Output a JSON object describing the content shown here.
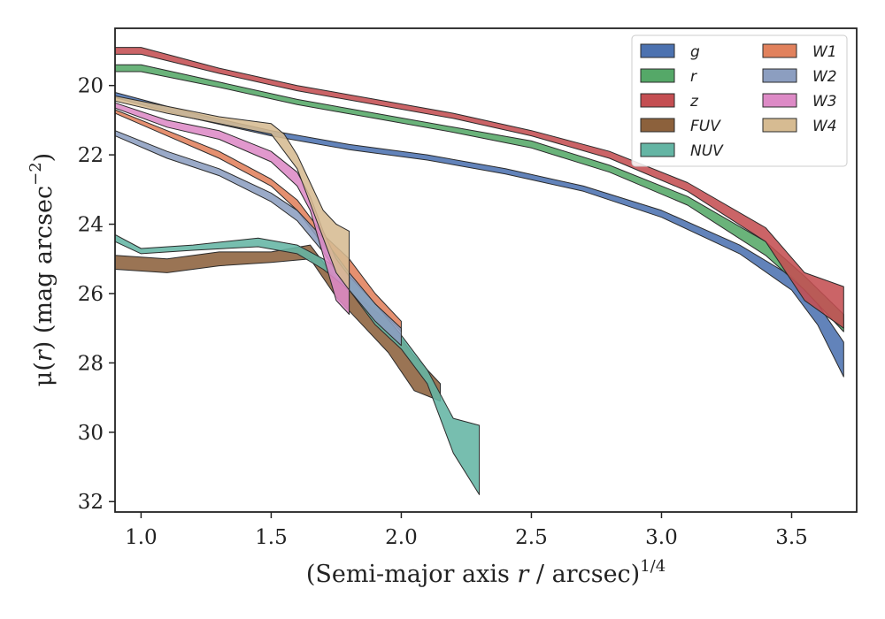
{
  "chart_data": {
    "type": "area",
    "title": "",
    "xlabel": "(Semi-major axis r / arcsec)",
    "xlabel_parts": {
      "prefix": "(Semi-major axis ",
      "var": "r",
      "suffix": " / arcsec)",
      "exponent": "1/4"
    },
    "ylabel": "μ(r) (mag arcsec−2)",
    "ylabel_parts": {
      "prefix": "μ(",
      "var": "r",
      "mid": ") (mag arcsec",
      "exponent": "−2",
      "suffix": ")"
    },
    "xlim": [
      0.9,
      3.75
    ],
    "ylim": [
      32.3,
      18.35
    ],
    "y_inverted": true,
    "x_ticks": [
      1.0,
      1.5,
      2.0,
      2.5,
      3.0,
      3.5
    ],
    "x_tick_labels": [
      "1.0",
      "1.5",
      "2.0",
      "2.5",
      "3.0",
      "3.5"
    ],
    "y_ticks": [
      20,
      22,
      24,
      26,
      28,
      30,
      32
    ],
    "y_tick_labels": [
      "20",
      "22",
      "24",
      "26",
      "28",
      "30",
      "32"
    ],
    "grid": false,
    "legend_position": "top-right",
    "legend_columns": 2,
    "series": [
      {
        "name": "g",
        "color": "#4c72b0",
        "x": [
          0.9,
          1.2,
          1.5,
          1.8,
          2.1,
          2.4,
          2.7,
          3.0,
          3.3,
          3.5,
          3.6,
          3.7
        ],
        "lower": [
          20.2,
          20.8,
          21.3,
          21.7,
          22.0,
          22.4,
          22.9,
          23.6,
          24.6,
          25.5,
          26.3,
          27.4
        ],
        "upper": [
          20.35,
          20.95,
          21.45,
          21.85,
          22.15,
          22.55,
          23.05,
          23.8,
          24.85,
          25.9,
          26.9,
          28.4
        ]
      },
      {
        "name": "r",
        "color": "#55a868",
        "x": [
          0.9,
          1.0,
          1.3,
          1.6,
          1.9,
          2.2,
          2.5,
          2.8,
          3.1,
          3.4,
          3.55,
          3.7
        ],
        "lower": [
          19.4,
          19.4,
          19.9,
          20.4,
          20.8,
          21.2,
          21.6,
          22.3,
          23.2,
          24.5,
          25.5,
          26.6
        ],
        "upper": [
          19.6,
          19.6,
          20.05,
          20.55,
          20.95,
          21.35,
          21.8,
          22.5,
          23.45,
          24.9,
          25.9,
          27.1
        ]
      },
      {
        "name": "z",
        "color": "#c44e52",
        "x": [
          0.9,
          1.0,
          1.3,
          1.6,
          1.9,
          2.2,
          2.5,
          2.8,
          3.1,
          3.4,
          3.55,
          3.7
        ],
        "lower": [
          18.9,
          18.9,
          19.5,
          20.0,
          20.4,
          20.8,
          21.3,
          21.9,
          22.8,
          24.1,
          25.4,
          25.8
        ],
        "upper": [
          19.1,
          19.1,
          19.65,
          20.15,
          20.55,
          20.95,
          21.45,
          22.1,
          23.05,
          24.5,
          26.2,
          27.0
        ]
      },
      {
        "name": "FUV",
        "color": "#8c613c",
        "x": [
          0.9,
          1.1,
          1.3,
          1.5,
          1.65,
          1.75,
          1.85,
          1.95,
          2.05,
          2.15
        ],
        "lower": [
          24.9,
          25.0,
          24.8,
          24.8,
          24.6,
          25.6,
          26.2,
          26.8,
          27.8,
          28.6
        ],
        "upper": [
          25.3,
          25.4,
          25.2,
          25.1,
          25.0,
          26.1,
          26.9,
          27.7,
          28.8,
          29.1
        ]
      },
      {
        "name": "NUV",
        "color": "#64b5a4",
        "x": [
          0.9,
          1.0,
          1.2,
          1.45,
          1.6,
          1.7,
          1.8,
          1.9,
          2.0,
          2.1,
          2.2,
          2.3
        ],
        "lower": [
          24.3,
          24.7,
          24.6,
          24.4,
          24.6,
          25.0,
          25.5,
          26.3,
          27.2,
          28.2,
          29.6,
          29.8
        ],
        "upper": [
          24.5,
          24.85,
          24.75,
          24.65,
          24.85,
          25.3,
          25.9,
          26.9,
          27.6,
          28.6,
          30.6,
          31.8
        ]
      },
      {
        "name": "W1",
        "color": "#e1815c",
        "x": [
          0.9,
          1.1,
          1.3,
          1.5,
          1.6,
          1.7,
          1.8,
          1.9,
          2.0
        ],
        "lower": [
          20.7,
          21.3,
          21.9,
          22.7,
          23.3,
          24.3,
          25.0,
          26.0,
          26.8
        ],
        "upper": [
          20.8,
          21.45,
          22.1,
          22.9,
          23.6,
          24.6,
          25.5,
          26.3,
          27.1
        ]
      },
      {
        "name": "W2",
        "color": "#8c9ec0",
        "x": [
          0.9,
          1.1,
          1.3,
          1.5,
          1.6,
          1.7,
          1.8,
          1.9,
          2.0
        ],
        "lower": [
          21.3,
          21.9,
          22.4,
          23.1,
          23.6,
          24.4,
          25.4,
          26.3,
          27.0
        ],
        "upper": [
          21.45,
          22.1,
          22.6,
          23.35,
          23.9,
          24.8,
          25.9,
          26.8,
          27.5
        ]
      },
      {
        "name": "W3",
        "color": "#dd8ac6",
        "x": [
          0.9,
          1.1,
          1.3,
          1.5,
          1.6,
          1.65,
          1.7,
          1.75,
          1.8
        ],
        "lower": [
          20.5,
          21.0,
          21.3,
          21.9,
          22.5,
          23.2,
          24.2,
          25.0,
          25.5
        ],
        "upper": [
          20.65,
          21.2,
          21.55,
          22.2,
          22.9,
          23.6,
          24.9,
          26.2,
          26.6
        ]
      },
      {
        "name": "W4",
        "color": "#d6bb92",
        "x": [
          0.9,
          1.1,
          1.3,
          1.5,
          1.55,
          1.6,
          1.65,
          1.7,
          1.75,
          1.8
        ],
        "lower": [
          20.3,
          20.6,
          20.9,
          21.1,
          21.4,
          22.0,
          22.8,
          23.6,
          24.0,
          24.2
        ],
        "upper": [
          20.45,
          20.8,
          21.1,
          21.4,
          21.9,
          22.4,
          23.4,
          24.4,
          25.4,
          25.9
        ]
      }
    ]
  }
}
